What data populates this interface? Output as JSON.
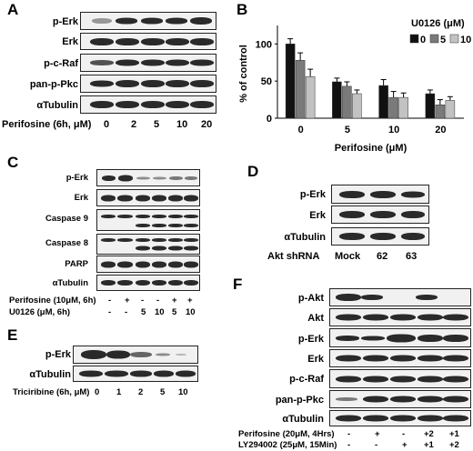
{
  "panels": {
    "A": {
      "letter": "A",
      "rows": [
        "p-Erk",
        "Erk",
        "p-c-Raf",
        "pan-p-Pkc",
        "αTubulin"
      ],
      "treatment_label": "Perifosine (6h, μM)",
      "lanes": [
        "0",
        "2",
        "5",
        "10",
        "20"
      ]
    },
    "B": {
      "letter": "B",
      "legend_title": "U0126 (μM)",
      "legend": [
        "0",
        "5",
        "10"
      ],
      "ylabel": "% of control",
      "xlabel": "Perifosine (μM)",
      "yticks": [
        "0",
        "50",
        "100"
      ]
    },
    "C": {
      "letter": "C",
      "rows": [
        "p-Erk",
        "Erk",
        "Caspase 9",
        "Caspase 8",
        "PARP",
        "αTubulin"
      ],
      "treatment_rows": [
        {
          "label": "Perifosine (10μM, 6h)",
          "values": [
            "-",
            "+",
            "-",
            "-",
            "+",
            "+"
          ]
        },
        {
          "label": "U0126 (μM, 6h)",
          "values": [
            "-",
            "-",
            "5",
            "10",
            "5",
            "10"
          ]
        }
      ]
    },
    "D": {
      "letter": "D",
      "rows": [
        "p-Erk",
        "Erk",
        "αTubulin"
      ],
      "treatment_label": "Akt shRNA",
      "lanes": [
        "Mock",
        "62",
        "63"
      ]
    },
    "E": {
      "letter": "E",
      "rows": [
        "p-Erk",
        "αTubulin"
      ],
      "treatment_label": "Triciribine (6h, μM)",
      "lanes": [
        "0",
        "1",
        "2",
        "5",
        "10"
      ]
    },
    "F": {
      "letter": "F",
      "rows": [
        "p-Akt",
        "Akt",
        "p-Erk",
        "Erk",
        "p-c-Raf",
        "pan-p-Pkc",
        "αTubulin"
      ],
      "treatment_rows": [
        {
          "label": "Perifosine (20μM, 4Hrs)",
          "values": [
            "-",
            "+",
            "-",
            "+2",
            "+1"
          ]
        },
        {
          "label": "LY294002 (25μM, 15Min)",
          "values": [
            "-",
            "-",
            "+",
            "+1",
            "+2"
          ]
        }
      ]
    }
  },
  "chart_data": {
    "type": "bar",
    "title": "",
    "xlabel": "Perifosine (μM)",
    "ylabel": "% of control",
    "categories": [
      "0",
      "5",
      "10",
      "20"
    ],
    "ylim": [
      0,
      120
    ],
    "grid": false,
    "legend_position": "top-right",
    "legend_title": "U0126 (μM)",
    "series": [
      {
        "name": "0",
        "color": "#111111",
        "values": [
          100,
          49,
          44,
          33
        ],
        "errors": [
          7,
          5,
          8,
          5
        ]
      },
      {
        "name": "5",
        "color": "#7a7a7a",
        "values": [
          78,
          43,
          28,
          18
        ],
        "errors": [
          10,
          6,
          8,
          7
        ]
      },
      {
        "name": "10",
        "color": "#c2c2c2",
        "values": [
          56,
          33,
          28,
          24
        ],
        "errors": [
          10,
          5,
          6,
          5
        ]
      }
    ]
  }
}
